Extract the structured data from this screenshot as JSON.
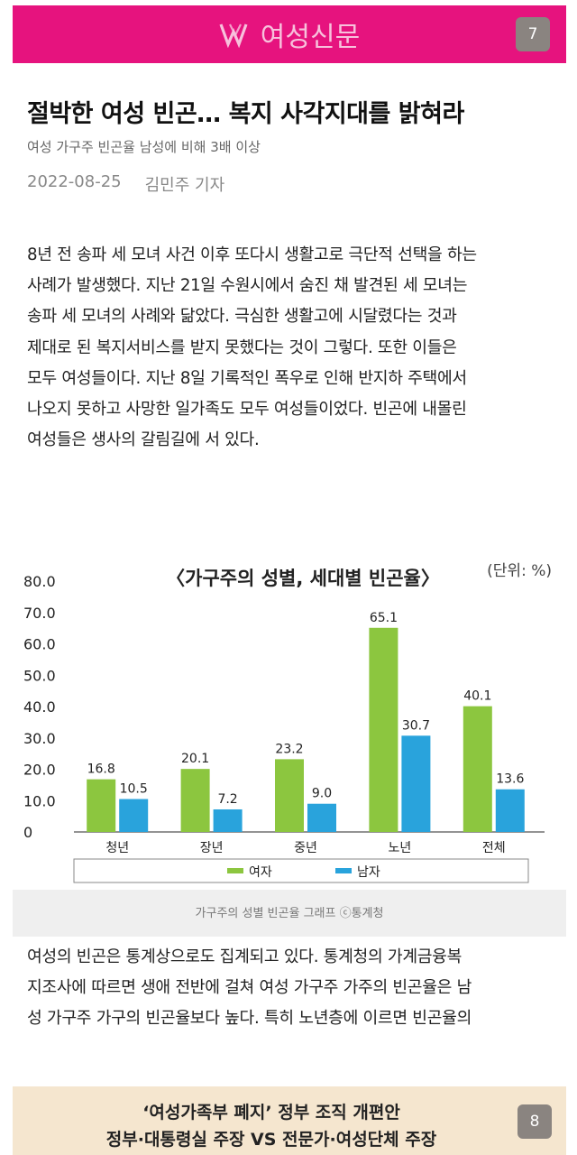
{
  "header": {
    "logo_text": "여성신문",
    "page_number": "7"
  },
  "article": {
    "title": "절박한 여성 빈곤… 복지 사각지대를 밝혀라",
    "subtitle": "여성 가구주 빈곤율 남성에 비해 3배 이상",
    "date": "2022-08-25",
    "author": "김민주 기자",
    "paragraph1": [
      "8년 전 송파 세 모녀 사건 이후 또다시 생활고로 극단적 선택을 하는",
      "사례가 발생했다. 지난 21일 수원시에서 숨진 채 발견된 세 모녀는",
      "송파 세 모녀의 사례와 닮았다. 극심한 생활고에 시달렸다는 것과",
      "제대로 된 복지서비스를 받지 못했다는 것이 그렇다. 또한 이들은",
      "모두 여성들이다. 지난 8일 기록적인 폭우로 인해 반지하 주택에서",
      "나오지 못하고 사망한 일가족도 모두 여성들이었다. 빈곤에 내몰린",
      "여성들은 생사의 갈림길에 서 있다."
    ],
    "paragraph2": [
      "여성의 빈곤은 통계상으로도 집계되고 있다. 통계청의 가계금융복",
      "지조사에 따르면 생애 전반에 걸쳐 여성 가구주 가주의 빈곤율은 남",
      "성 가구주 가구의 빈곤율보다 높다. 특히 노년층에 이르면 빈곤율의"
    ],
    "figure_caption": "가구주의 성별 빈곤율 그래프 ⓒ통계청"
  },
  "chart_data": {
    "type": "bar",
    "title": "〈가구주의 성별, 세대별 빈곤율〉",
    "unit_label": "(단위: %)",
    "categories": [
      "청년",
      "장년",
      "중년",
      "노년",
      "전체"
    ],
    "series": [
      {
        "name": "여자",
        "color": "#8cc63f",
        "values": [
          16.8,
          20.1,
          23.2,
          65.1,
          40.1
        ]
      },
      {
        "name": "남자",
        "color": "#29a3dc",
        "values": [
          10.5,
          7.2,
          9.0,
          30.7,
          13.6
        ]
      }
    ],
    "y_ticks": [
      "80.0",
      "70.0",
      "60.0",
      "50.0",
      "40.0",
      "30.0",
      "20.0",
      "10.0",
      "0"
    ],
    "ylim": [
      0,
      80
    ],
    "grid": false,
    "legend": "bottom"
  },
  "promo": {
    "line1": "‘여성가족부 폐지’ 정부 조직 개편안",
    "line2": "정부·대통령실 주장 VS 전문가·여성단체 주장",
    "page_number": "8"
  }
}
